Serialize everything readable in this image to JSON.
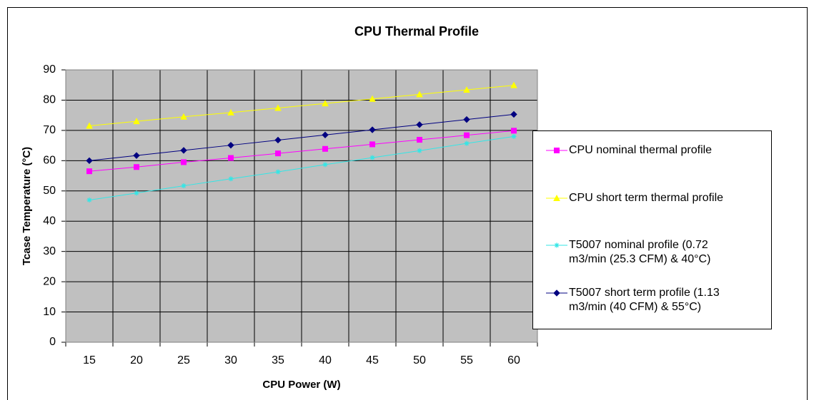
{
  "chart_data": {
    "type": "line",
    "title": "CPU Thermal Profile",
    "x_label": "CPU Power (W)",
    "y_label": "Tcase Temperature (°C)",
    "categories": [
      "15",
      "20",
      "25",
      "30",
      "35",
      "40",
      "45",
      "50",
      "55",
      "60"
    ],
    "series": [
      {
        "name": "CPU nominal thermal profile",
        "color": "#ff00ff",
        "marker": "square",
        "values": [
          56.5,
          57.9,
          59.5,
          60.9,
          62.4,
          63.9,
          65.4,
          66.9,
          68.4,
          69.9
        ]
      },
      {
        "name": "CPU short term thermal profile",
        "color": "#ffff00",
        "marker": "triangle",
        "values": [
          71.5,
          73.0,
          74.5,
          75.9,
          77.4,
          78.9,
          80.4,
          81.9,
          83.4,
          84.9
        ]
      },
      {
        "name": "T5007 nominal profile (0.72 m3/min (25.3 CFM) & 40°C)",
        "color": "#33e6e6",
        "marker": "star",
        "values": [
          47.0,
          49.3,
          51.7,
          54.0,
          56.3,
          58.7,
          61.0,
          63.3,
          65.7,
          68.0
        ]
      },
      {
        "name": "T5007 short term profile (1.13 m3/min (40 CFM) & 55°C)",
        "color": "#000080",
        "marker": "diamond",
        "values": [
          60.0,
          61.7,
          63.4,
          65.1,
          66.8,
          68.5,
          70.2,
          71.9,
          73.6,
          75.3
        ]
      }
    ],
    "ylim": [
      0,
      90
    ],
    "yticks": [
      0,
      10,
      20,
      30,
      40,
      50,
      60,
      70,
      80,
      90
    ],
    "grid": true,
    "legend": "right"
  }
}
